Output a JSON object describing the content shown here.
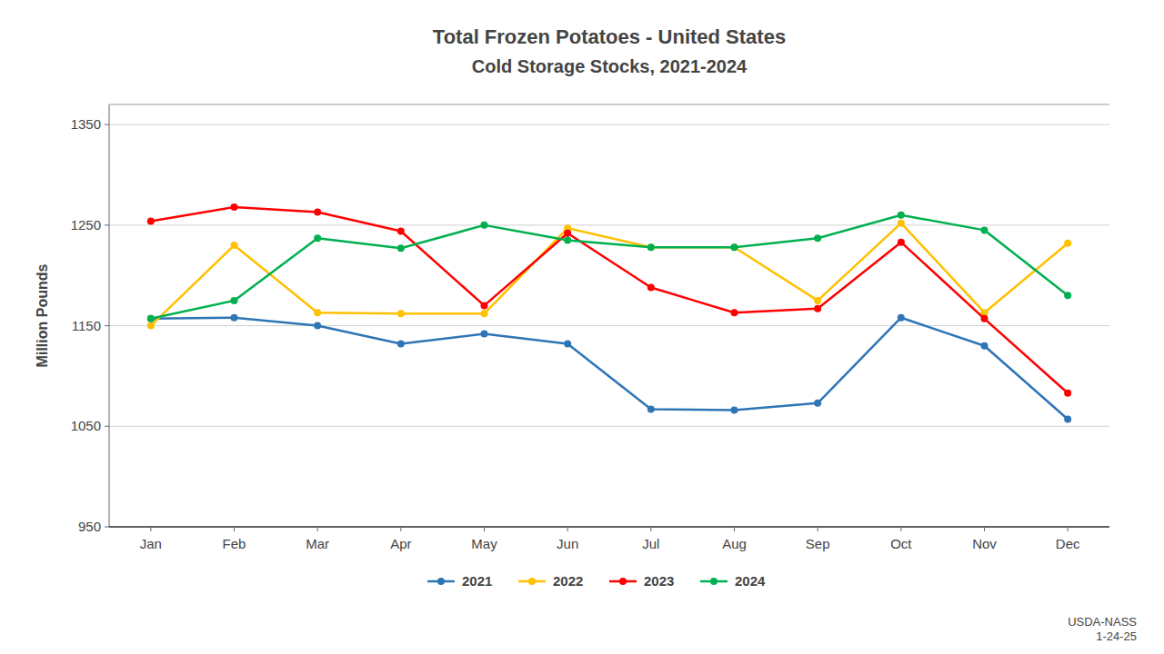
{
  "chart_data": {
    "type": "line",
    "title": "Total Frozen Potatoes - United States",
    "subtitle": "Cold Storage Stocks, 2021-2024",
    "ylabel": "Million Pounds",
    "categories": [
      "Jan",
      "Feb",
      "Mar",
      "Apr",
      "May",
      "Jun",
      "Jul",
      "Aug",
      "Sep",
      "Oct",
      "Nov",
      "Dec"
    ],
    "series": [
      {
        "name": "2021",
        "color": "#2E75B6",
        "values": [
          1157,
          1158,
          1150,
          1132,
          1142,
          1132,
          1067,
          1066,
          1073,
          1158,
          1130,
          1057
        ]
      },
      {
        "name": "2022",
        "color": "#FFC000",
        "values": [
          1150,
          1230,
          1163,
          1162,
          1162,
          1247,
          1228,
          1228,
          1175,
          1252,
          1163,
          1232
        ]
      },
      {
        "name": "2023",
        "color": "#FF0000",
        "values": [
          1254,
          1268,
          1263,
          1244,
          1170,
          1242,
          1188,
          1163,
          1167,
          1233,
          1157,
          1083
        ]
      },
      {
        "name": "2024",
        "color": "#00B050",
        "values": [
          1157,
          1175,
          1237,
          1227,
          1250,
          1235,
          1228,
          1228,
          1237,
          1260,
          1245,
          1180
        ]
      }
    ],
    "ylim": [
      950,
      1370
    ],
    "yticks": [
      950,
      1050,
      1150,
      1250,
      1350
    ],
    "grid": true,
    "legend": "bottom",
    "marker": "circle",
    "annotation": "USDA-NASS\n1-24-25"
  }
}
